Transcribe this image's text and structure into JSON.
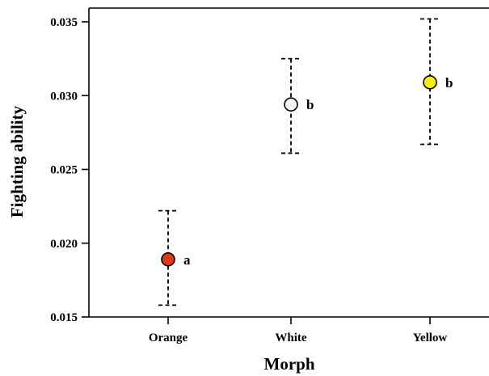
{
  "chart_data": {
    "type": "scatter",
    "title": "",
    "xlabel": "Morph",
    "ylabel": "Fighting ability",
    "ylim": [
      0.015,
      0.036
    ],
    "yticks": [
      0.015,
      0.02,
      0.025,
      0.03,
      0.035
    ],
    "ytick_labels": [
      "0.015",
      "0.020",
      "0.025",
      "0.030",
      "0.035"
    ],
    "categories": [
      "Orange",
      "White",
      "Yellow"
    ],
    "points": [
      {
        "category": "Orange",
        "value": 0.0189,
        "lower": 0.0158,
        "upper": 0.0222,
        "color": "#d93a1c",
        "group_label": "a"
      },
      {
        "category": "White",
        "value": 0.0294,
        "lower": 0.0261,
        "upper": 0.0325,
        "color": "#f4f4f4",
        "group_label": "b"
      },
      {
        "category": "Yellow",
        "value": 0.0309,
        "lower": 0.0267,
        "upper": 0.0352,
        "color": "#f7ec17",
        "group_label": "b"
      }
    ],
    "grid": false,
    "legend": "none"
  }
}
